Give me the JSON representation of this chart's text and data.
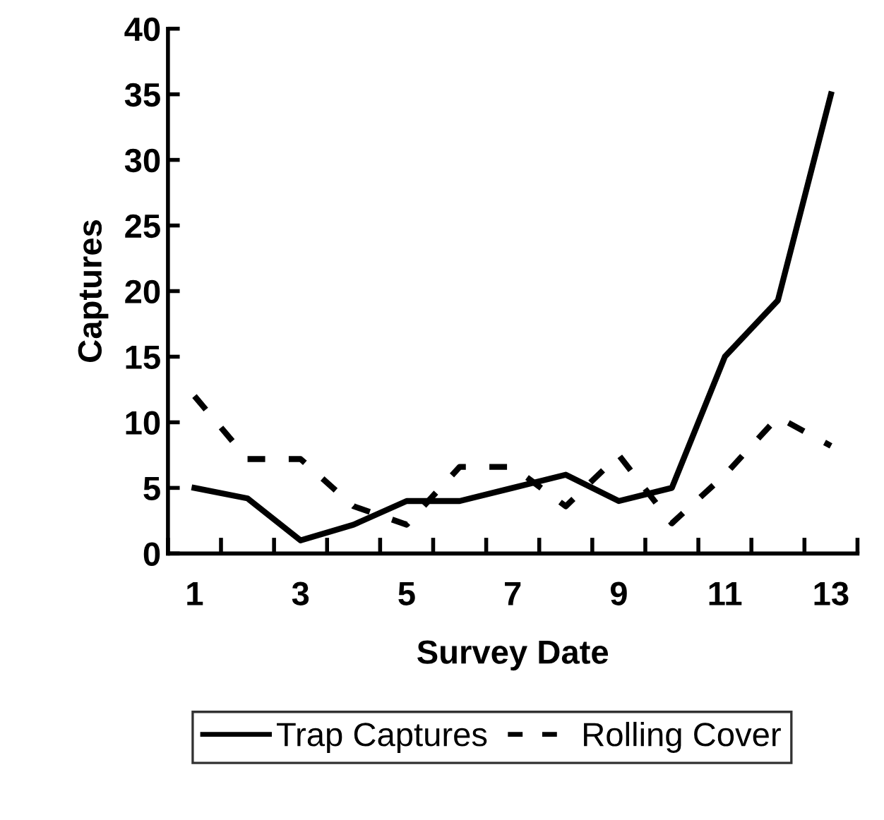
{
  "chart_data": {
    "type": "line",
    "xlabel": "Survey Date",
    "ylabel": "Captures",
    "categories": [
      "1",
      null,
      "3",
      null,
      "5",
      null,
      "7",
      null,
      "9",
      null,
      "11",
      null,
      "13"
    ],
    "series": [
      {
        "name": "Trap Captures",
        "color": "#000000",
        "line_style": "solid",
        "values": [
          5,
          4.2,
          1,
          2.2,
          4,
          4,
          5,
          6,
          4,
          5,
          15,
          19.3,
          35
        ]
      },
      {
        "name": "Rolling Cover",
        "color": "#000000",
        "line_style": "dashed",
        "values": [
          12,
          7.2,
          7.2,
          3.6,
          2.2,
          6.6,
          6.6,
          3.6,
          7.5,
          2.3,
          6,
          10.4,
          8.2
        ]
      }
    ],
    "ylim": [
      0,
      40
    ],
    "yticks": [
      0,
      5,
      10,
      15,
      20,
      25,
      30,
      35,
      40
    ],
    "grid": false,
    "legend": "bottom",
    "marker": "none"
  }
}
